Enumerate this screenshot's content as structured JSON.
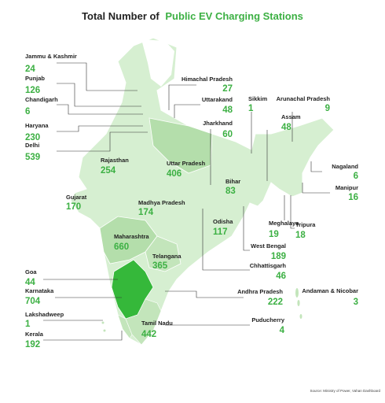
{
  "title": {
    "prefix": "Total Number of",
    "highlight": "Public EV Charging Stations"
  },
  "regions": [
    {
      "name": "Jammu & Kashmir",
      "value": 24
    },
    {
      "name": "Punjab",
      "value": 126
    },
    {
      "name": "Chandigarh",
      "value": 6
    },
    {
      "name": "Haryana",
      "value": 230
    },
    {
      "name": "Delhi",
      "value": 539
    },
    {
      "name": "Himachal Pradesh",
      "value": 27
    },
    {
      "name": "Uttarakand",
      "value": 48
    },
    {
      "name": "Jharkhand",
      "value": 60
    },
    {
      "name": "Sikkim",
      "value": 1
    },
    {
      "name": "Arunachal Pradesh",
      "value": 9
    },
    {
      "name": "Assam",
      "value": 48
    },
    {
      "name": "Rajasthan",
      "value": 254
    },
    {
      "name": "Uttar Pradesh",
      "value": 406
    },
    {
      "name": "Bihar",
      "value": 83
    },
    {
      "name": "Nagaland",
      "value": 6
    },
    {
      "name": "Manipur",
      "value": 16
    },
    {
      "name": "Gujarat",
      "value": 170
    },
    {
      "name": "Madhya Pradesh",
      "value": 174
    },
    {
      "name": "Odisha",
      "value": 117
    },
    {
      "name": "Meghalaya",
      "value": 19
    },
    {
      "name": "Tripura",
      "value": 18
    },
    {
      "name": "Maharashtra",
      "value": 660
    },
    {
      "name": "West Bengal",
      "value": 189
    },
    {
      "name": "Telangana",
      "value": 365
    },
    {
      "name": "Chhattisgarh",
      "value": 46
    },
    {
      "name": "Goa",
      "value": 44
    },
    {
      "name": "Karnataka",
      "value": 704
    },
    {
      "name": "Andhra Pradesh",
      "value": 222
    },
    {
      "name": "Andaman & Nicobar",
      "value": 3
    },
    {
      "name": "Lakshadweep",
      "value": 1
    },
    {
      "name": "Puducherry",
      "value": 4
    },
    {
      "name": "Tamil Nadu",
      "value": 442
    },
    {
      "name": "Kerala",
      "value": 192
    }
  ],
  "source": "Source: Ministry of Power, Vahan Dashboard"
}
